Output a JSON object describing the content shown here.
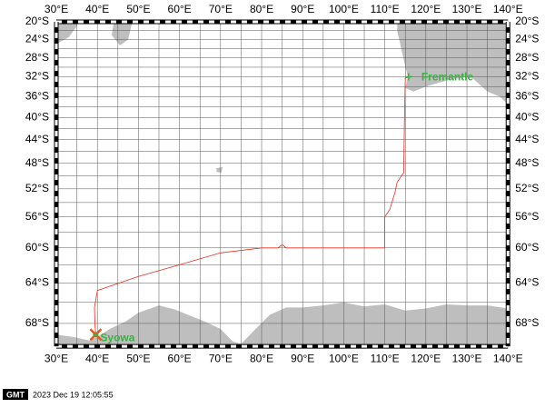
{
  "map": {
    "lon_labels": [
      "30°E",
      "40°E",
      "50°E",
      "60°E",
      "70°E",
      "80°E",
      "90°E",
      "100°E",
      "110°E",
      "120°E",
      "130°E",
      "140°E"
    ],
    "lat_labels": [
      "20°S",
      "24°S",
      "28°S",
      "32°S",
      "36°S",
      "40°S",
      "44°S",
      "48°S",
      "52°S",
      "56°S",
      "60°S",
      "64°S",
      "68°S"
    ],
    "places": [
      "Fremantle",
      "Syowa"
    ]
  },
  "footer": {
    "logo": "GMT",
    "timestamp": "2023 Dec 19 12:05:55"
  }
}
